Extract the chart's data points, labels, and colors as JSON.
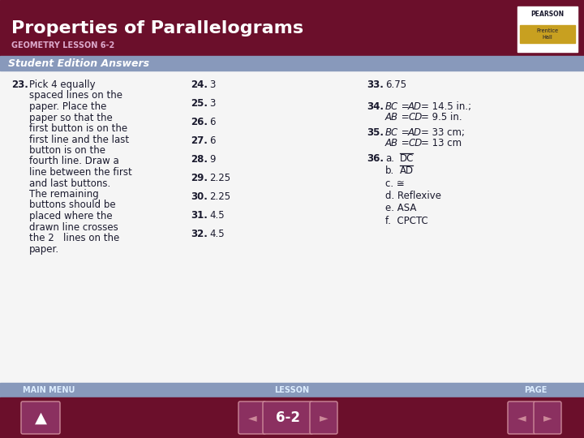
{
  "title": "Properties of Parallelograms",
  "subtitle": "GEOMETRY LESSON 6-2",
  "section_label": "Student Edition Answers",
  "bg_color": "#ffffff",
  "header_bg": "#6b0f2b",
  "section_bg": "#8899bb",
  "footer_bg": "#6b0f2b",
  "footer_nav_bg": "#8899bb",
  "title_color": "#ffffff",
  "subtitle_color": "#ddaacc",
  "section_color": "#ffffff",
  "col1_num": "23.",
  "col1_text_lines": [
    "Pick 4 equally",
    "spaced lines on the",
    "paper. Place the",
    "paper so that the",
    "first button is on the",
    "first line and the last",
    "button is on the",
    "fourth line. Draw a",
    "line between the first",
    "and last buttons.",
    "The remaining",
    "buttons should be",
    "placed where the",
    "drawn line crosses",
    "the 2   lines on the",
    "paper."
  ],
  "col2_items": [
    [
      "24.",
      "3"
    ],
    [
      "25.",
      "3"
    ],
    [
      "26.",
      "6"
    ],
    [
      "27.",
      "6"
    ],
    [
      "28.",
      "9"
    ],
    [
      "29.",
      "2.25"
    ],
    [
      "30.",
      "2.25"
    ],
    [
      "31.",
      "4.5"
    ],
    [
      "32.",
      "4.5"
    ]
  ],
  "footer_labels": [
    "MAIN MENU",
    "LESSON",
    "PAGE"
  ],
  "lesson_btn": "6-2",
  "text_color": "#1a1a2e"
}
